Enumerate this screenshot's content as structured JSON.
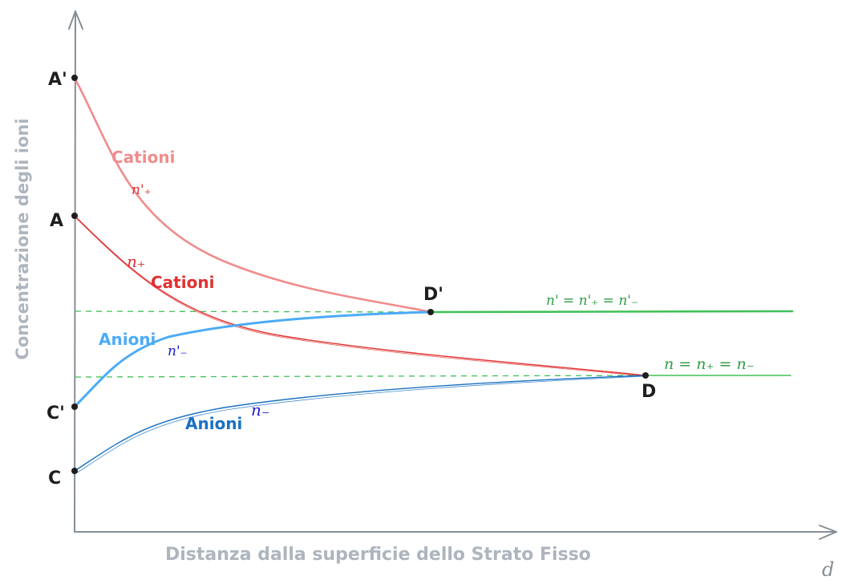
{
  "axes": {
    "ylabel": "Concentrazione degli ioni",
    "xlabel": "Distanza dalla superficie dello Strato Fisso",
    "x_symbol": "d"
  },
  "points": {
    "a_prime": "A'",
    "a": "A",
    "c_prime": "C'",
    "c": "C",
    "d_prime": "D'",
    "d": "D"
  },
  "labels": {
    "cationi_upper": "Cationi",
    "n_plus_prime": "n'₊",
    "n_plus": "n₊",
    "cationi_lower": "Cationi",
    "anioni_upper": "Anioni",
    "n_minus_prime": "n'₋",
    "anioni_lower": "Anioni",
    "n_minus": "n₋",
    "eq_prime": "n' = n'₊ = n'₋",
    "eq": "n = n₊ = n₋"
  },
  "colors": {
    "axis": "#868e96",
    "cation_prime": "#f08c8c",
    "cation": "#e03131",
    "anion_prime": "#4dabf7",
    "anion": "#1971c2",
    "equilibrium": "#40c057",
    "equilibrium_text": "#2f9e44",
    "math_blue": "#1c1cc9",
    "point": "#1e1e1e"
  }
}
